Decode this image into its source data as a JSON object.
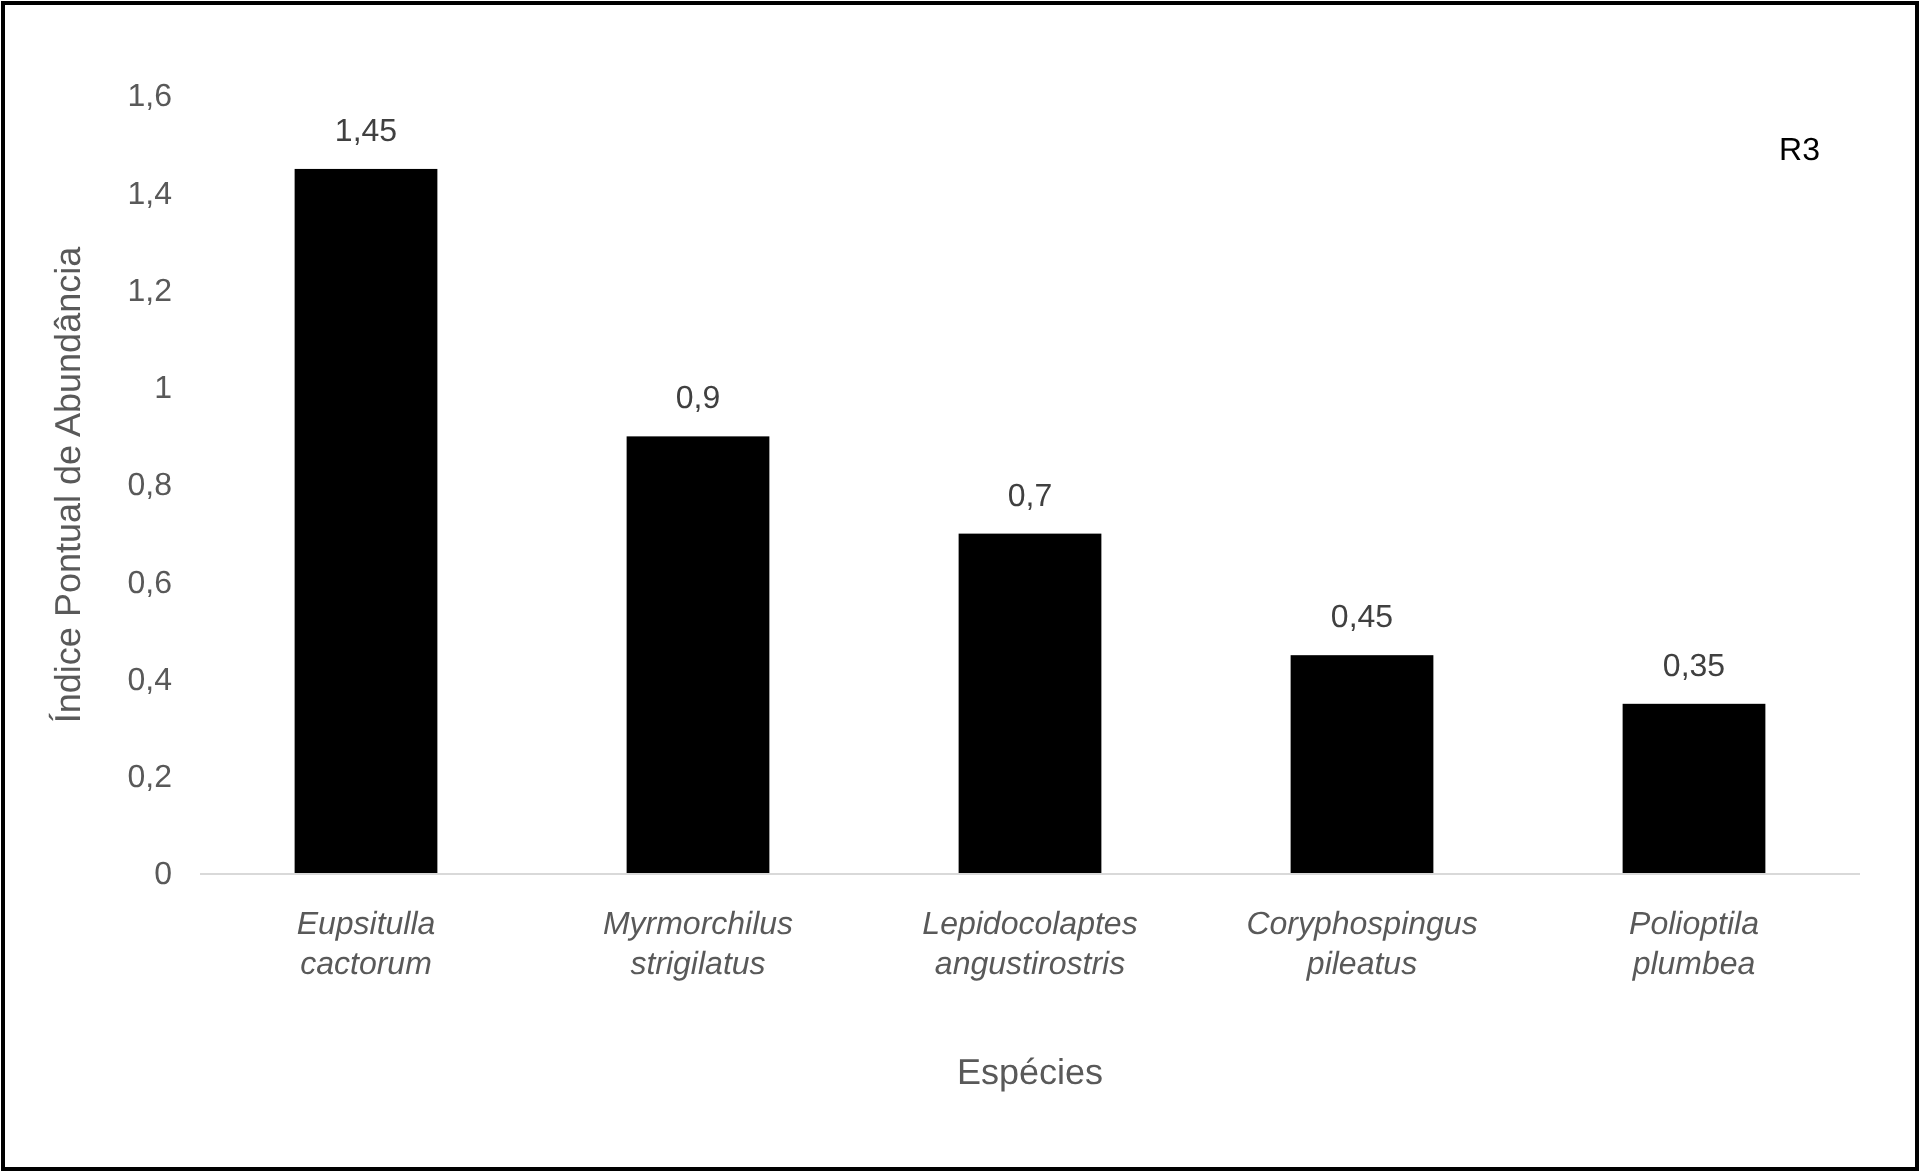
{
  "chart_data": {
    "type": "bar",
    "xlabel": "Espécies",
    "ylabel": "Índice Pontual de Abundância",
    "categories": [
      "Eupsitulla cactorum",
      "Myrmorchilus strigilatus",
      "Lepidocolaptes angustirostris",
      "Coryphospingus pileatus",
      "Polioptila plumbea"
    ],
    "values": [
      1.45,
      0.9,
      0.7,
      0.45,
      0.35
    ],
    "value_labels": [
      "1,45",
      "0,9",
      "0,7",
      "0,45",
      "0,35"
    ],
    "color": "#000000",
    "ylim": [
      0,
      1.6
    ],
    "yticks": [
      0,
      {
        "value": 0.2,
        "label": "0,2"
      },
      {
        "value": 0.4,
        "label": "0,4"
      },
      {
        "value": 0.6,
        "label": "0,6"
      },
      {
        "value": 0.8,
        "label": "0,8"
      },
      1,
      {
        "value": 1.2,
        "label": "1,2"
      },
      {
        "value": 1.4,
        "label": "1,4"
      },
      {
        "value": 1.6,
        "label": "1,6"
      }
    ],
    "annotations": [
      "R3"
    ]
  }
}
